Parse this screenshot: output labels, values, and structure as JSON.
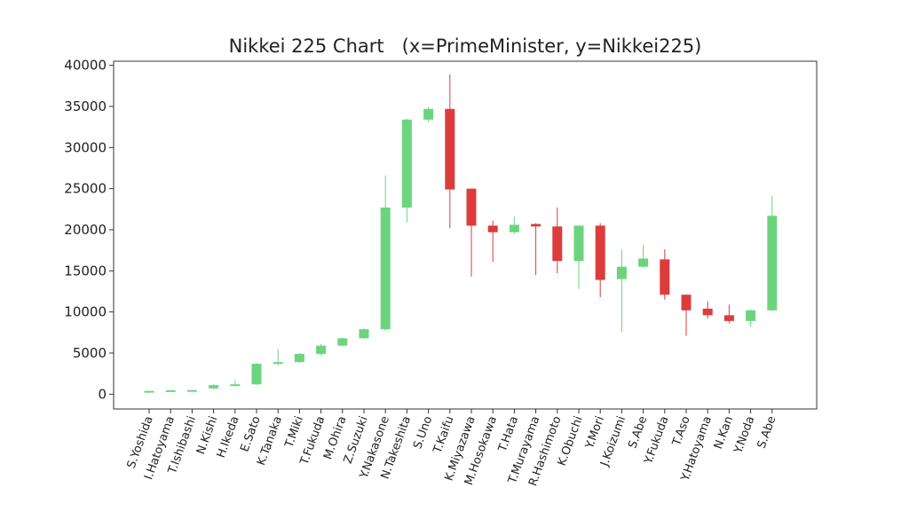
{
  "chart_data": {
    "type": "candlestick",
    "title": "Nikkei 225 Chart   (x=PrimeMinister, y=Nikkei225)",
    "xlabel": "",
    "ylabel": "",
    "ylim": [
      -1800,
      40500
    ],
    "yticks": [
      0,
      5000,
      10000,
      15000,
      20000,
      25000,
      30000,
      35000,
      40000
    ],
    "grid": false,
    "colors": {
      "up": "#6dd47e",
      "down": "#dc3c3c"
    },
    "categories": [
      "S.Yoshida",
      "I.Hatoyama",
      "T.Ishibashi",
      "N.Kishi",
      "H.Ikeda",
      "E.Sato",
      "K.Tanaka",
      "T.Miki",
      "T.Fukuda",
      "M.Ohira",
      "Z.Suzuki",
      "Y.Nakasone",
      "N.Takeshita",
      "S.Uno",
      "T.Kaifu",
      "K.Miyazawa",
      "M.Hosokawa",
      "T.Hata",
      "T.Murayama",
      "R.Hashimoto",
      "K.Obuchi",
      "Y.Mori",
      "J.Koizumi",
      "S.Abe",
      "Y.Fukuda",
      "T.Aso",
      "Y.Hatoyama",
      "N.Kan",
      "Y.Noda",
      "S.Abe"
    ],
    "open": [
      200,
      400,
      480,
      700,
      1100,
      1200,
      3700,
      3900,
      4900,
      5900,
      6800,
      7900,
      22700,
      33400,
      34700,
      25000,
      20500,
      19700,
      20700,
      20400,
      16200,
      20500,
      14000,
      15500,
      16400,
      12100,
      10400,
      9600,
      8900,
      10200
    ],
    "close": [
      400,
      480,
      500,
      1100,
      1200,
      3700,
      3900,
      4900,
      5900,
      6800,
      7900,
      22700,
      33400,
      34700,
      24900,
      20500,
      19700,
      20600,
      20400,
      16200,
      20500,
      13900,
      15500,
      16500,
      12100,
      10200,
      9600,
      8900,
      10200,
      21700
    ],
    "high": [
      400,
      520,
      540,
      1200,
      1700,
      3800,
      5500,
      5000,
      6100,
      6900,
      8000,
      26600,
      33500,
      34900,
      38900,
      25000,
      21100,
      21600,
      20800,
      22700,
      20500,
      20800,
      17600,
      18200,
      17600,
      12100,
      11300,
      10900,
      10300,
      24100
    ],
    "low": [
      150,
      360,
      440,
      600,
      1000,
      1100,
      3500,
      3800,
      4700,
      5800,
      6700,
      7700,
      20900,
      33100,
      20200,
      14300,
      16100,
      19500,
      14500,
      14700,
      12800,
      11800,
      7600,
      15400,
      11500,
      7100,
      9200,
      8600,
      8200,
      10100
    ]
  }
}
